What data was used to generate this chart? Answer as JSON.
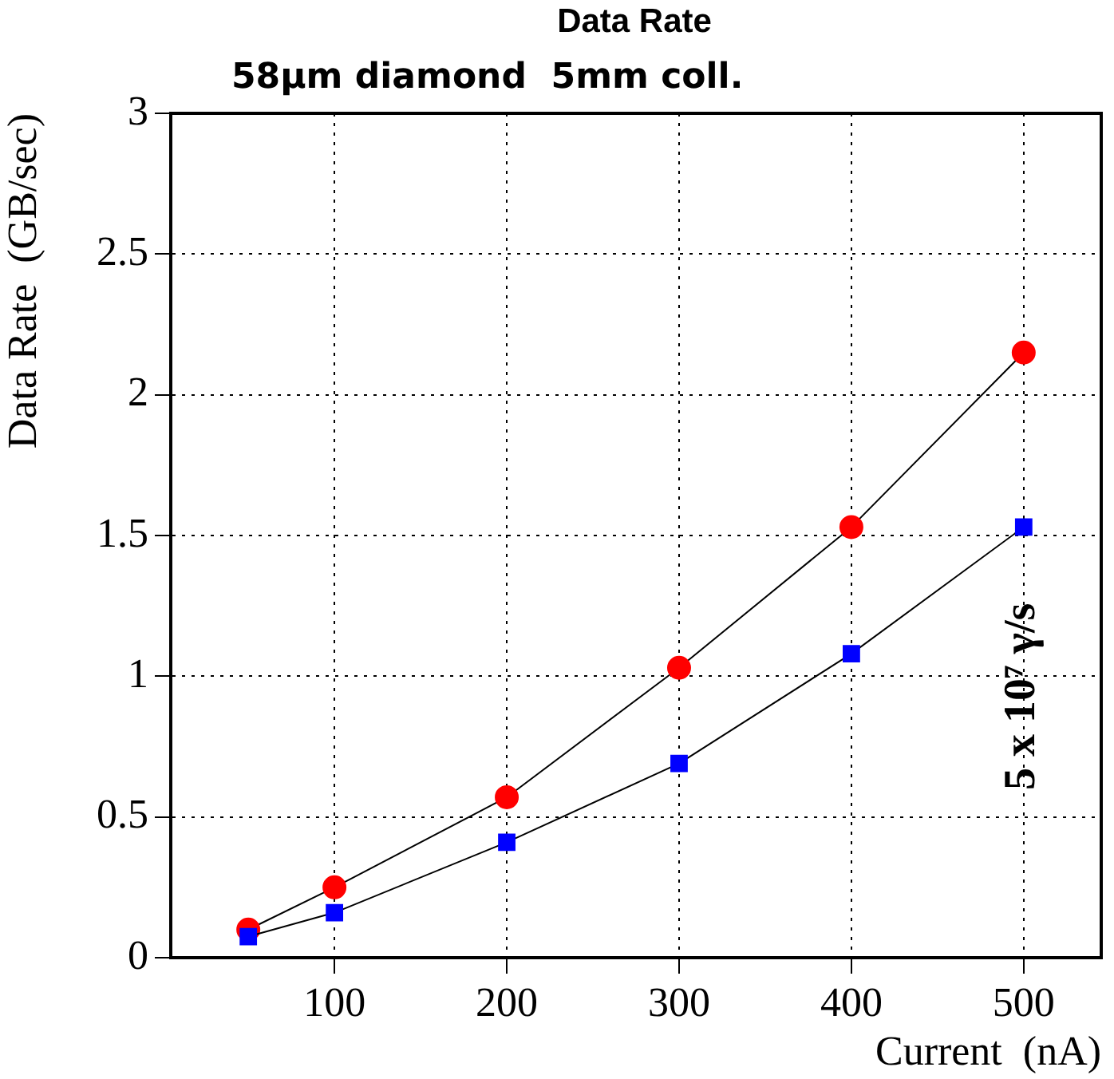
{
  "chart_data": {
    "type": "line",
    "title": "Data Rate",
    "subtitle": "58μm diamond  5mm coll.",
    "xlabel": "Current  (nA)",
    "ylabel": "Data Rate  (GB/sec)",
    "x": [
      50,
      100,
      200,
      300,
      400,
      500
    ],
    "series": [
      {
        "color": "#ff0000",
        "marker": "circle",
        "values": [
          0.1,
          0.25,
          0.57,
          1.03,
          1.53,
          2.15
        ]
      },
      {
        "color": "#0000ff",
        "marker": "square",
        "values": [
          0.075,
          0.16,
          0.41,
          0.69,
          1.08,
          1.53
        ]
      }
    ],
    "xlim": [
      5,
      545
    ],
    "xticks": [
      100,
      200,
      300,
      400,
      500
    ],
    "ylim": [
      0,
      3
    ],
    "yticks": [
      0,
      0.5,
      1,
      1.5,
      2,
      2.5,
      3
    ],
    "grid": true,
    "legend": false,
    "line_style": "solid",
    "annotations": [
      "5 x 10⁷ γ/s"
    ]
  }
}
